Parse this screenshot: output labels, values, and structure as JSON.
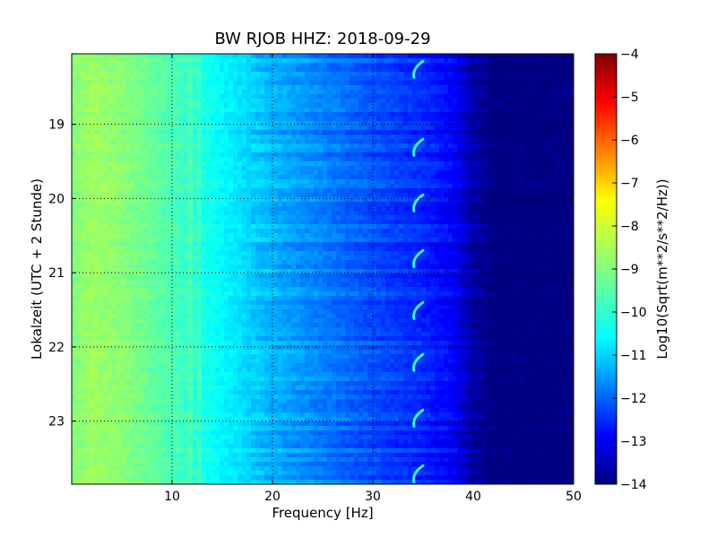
{
  "chart_data": {
    "type": "heatmap",
    "title": "BW RJOB HHZ: 2018-09-29",
    "xlabel": "Frequency [Hz]",
    "ylabel": "Lokalzeit (UTC + 2 Stunde)",
    "xlim": [
      0,
      50
    ],
    "ylim": [
      18.05,
      23.85
    ],
    "y_inverted": true,
    "x_ticks": [
      10,
      20,
      30,
      40,
      50
    ],
    "y_ticks": [
      19,
      20,
      21,
      22,
      23
    ],
    "grid": true,
    "colormap": "jet",
    "colorbar": {
      "label": "Log10(Sqrt(m**2/s**2/Hz))",
      "range": [
        -14,
        -4
      ],
      "ticks": [
        -4,
        -5,
        -6,
        -7,
        -8,
        -9,
        -10,
        -11,
        -12,
        -13,
        -14
      ]
    },
    "spectral_profile": {
      "frequency_hz": [
        0,
        2,
        5,
        10,
        15,
        20,
        25,
        30,
        35,
        38,
        40,
        42,
        50
      ],
      "log10_amplitude": [
        -9.0,
        -8.7,
        -8.9,
        -9.5,
        -10.3,
        -11.0,
        -11.5,
        -12.0,
        -12.4,
        -12.8,
        -13.6,
        -14.0,
        -14.0
      ]
    },
    "annotations": {
      "recurring_feature_frequency_hz": 34.5,
      "recurring_feature_times_h": [
        18.25,
        19.3,
        20.05,
        20.8,
        21.5,
        22.2,
        22.95,
        23.7
      ]
    }
  }
}
